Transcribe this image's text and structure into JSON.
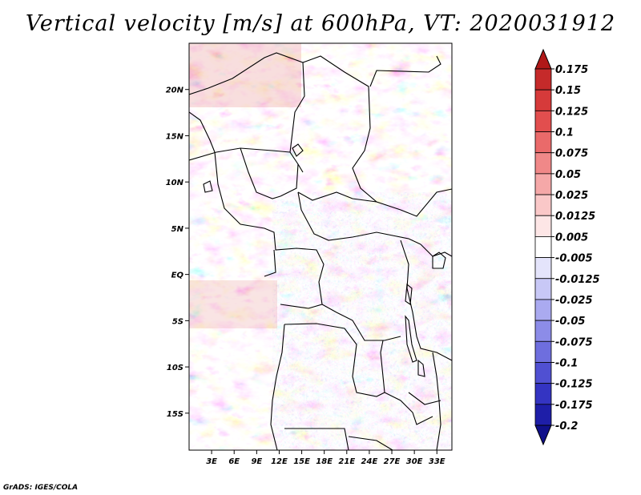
{
  "title": "Vertical velocity [m/s] at 600hPa, VT: 2020031912",
  "credit": "GrADS: IGES/COLA",
  "map": {
    "variable": "Vertical velocity",
    "units": "m/s",
    "level": "600hPa",
    "valid_time": "2020031912",
    "lat_range": [
      -19,
      25
    ],
    "lon_range": [
      0,
      35
    ],
    "lat_ticks": [
      {
        "value": 20,
        "label": "20N"
      },
      {
        "value": 15,
        "label": "15N"
      },
      {
        "value": 10,
        "label": "10N"
      },
      {
        "value": 5,
        "label": "5N"
      },
      {
        "value": 0,
        "label": "EQ"
      },
      {
        "value": -5,
        "label": "5S"
      },
      {
        "value": -10,
        "label": "10S"
      },
      {
        "value": -15,
        "label": "15S"
      }
    ],
    "lon_ticks": [
      {
        "value": 3,
        "label": "3E"
      },
      {
        "value": 6,
        "label": "6E"
      },
      {
        "value": 9,
        "label": "9E"
      },
      {
        "value": 12,
        "label": "12E"
      },
      {
        "value": 15,
        "label": "15E"
      },
      {
        "value": 18,
        "label": "18E"
      },
      {
        "value": 21,
        "label": "21E"
      },
      {
        "value": 24,
        "label": "24E"
      },
      {
        "value": 27,
        "label": "27E"
      },
      {
        "value": 30,
        "label": "30E"
      },
      {
        "value": 33,
        "label": "33E"
      }
    ]
  },
  "colorbar": {
    "labels": [
      "0.175",
      "0.15",
      "0.125",
      "0.1",
      "0.075",
      "0.05",
      "0.025",
      "0.0125",
      "0.005",
      "-0.005",
      "-0.0125",
      "-0.025",
      "-0.05",
      "-0.075",
      "-0.1",
      "-0.125",
      "-0.175",
      "-0.2"
    ],
    "colors": [
      "#b01818",
      "#c52a2a",
      "#d63a3a",
      "#e24e4e",
      "#ea6a6a",
      "#f08888",
      "#f5a8a8",
      "#fac8c8",
      "#fde6e6",
      "#ffffff",
      "#e4e4fb",
      "#c8c8f6",
      "#aaaaf0",
      "#8c8ce8",
      "#6e6ede",
      "#5050d2",
      "#3434c2",
      "#1e1ea8",
      "#10108a"
    ]
  }
}
